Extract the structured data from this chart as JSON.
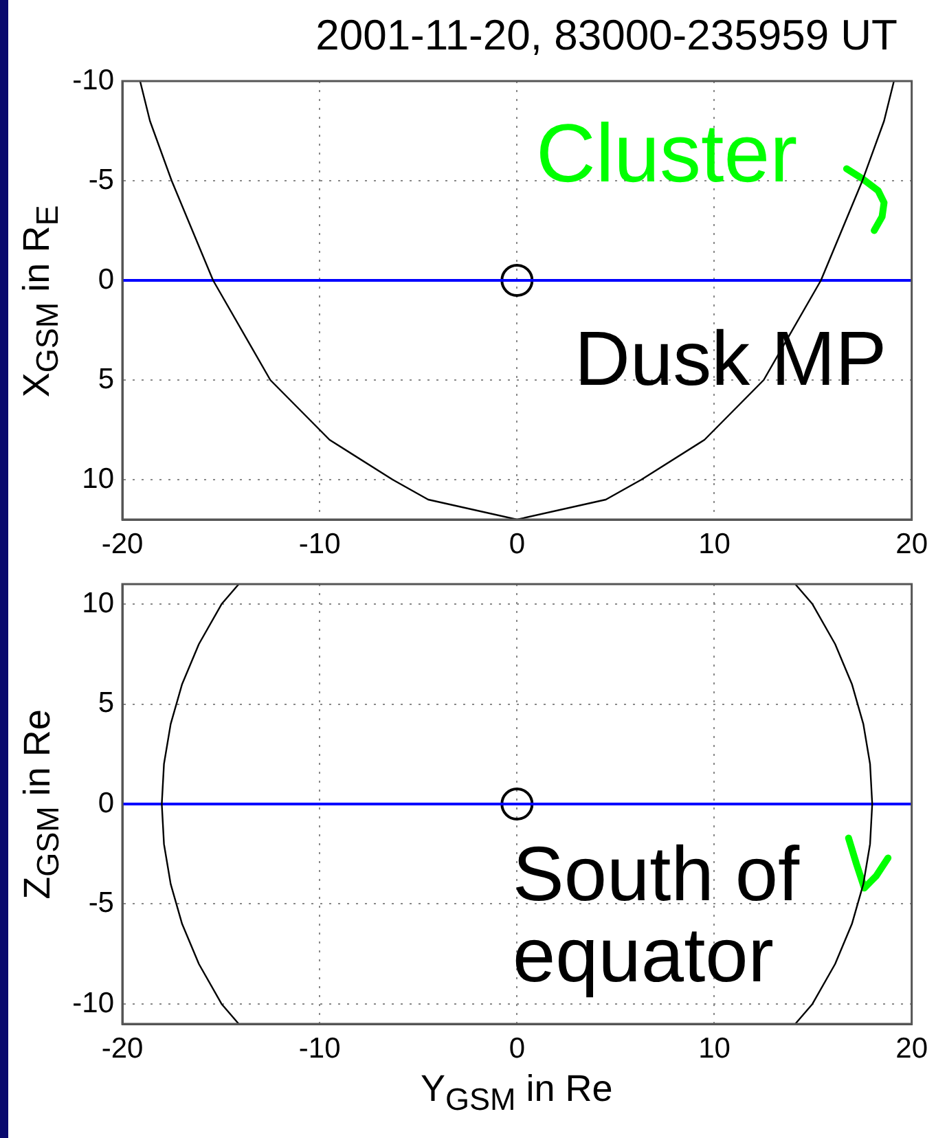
{
  "chart_data": [
    {
      "type": "line",
      "title": "2001-11-20, 83000-235959 UT",
      "ylabel": "X$_{GSM}$ in R$_{E}$",
      "xlim": [
        -20,
        20
      ],
      "xticks": [
        -20,
        -10,
        0,
        10,
        20
      ],
      "ylim": [
        12,
        -10
      ],
      "yticks": [
        -10,
        -5,
        0,
        5,
        10
      ],
      "grid": true,
      "legend": false,
      "line_style": "solid",
      "annotations": [
        "Dusk MP"
      ],
      "series": [
        {
          "type": "line",
          "color": "#000000",
          "marker": "none",
          "x": [
            -19.1,
            -18.6,
            -17.5,
            -15.4,
            -12.5,
            -9.5,
            -6.3,
            -4.5,
            0,
            4.5,
            6.3,
            9.5,
            12.5,
            15.4,
            17.5,
            18.6,
            19.1
          ],
          "values": [
            -10,
            -8,
            -5,
            0,
            5,
            8,
            10,
            11,
            12,
            11,
            10,
            8,
            5,
            0,
            -5,
            -8,
            -10
          ]
        },
        {
          "type": "line",
          "color": "#0000ff",
          "marker": "none",
          "x": [
            -20,
            20
          ],
          "values": [
            0,
            0
          ]
        },
        {
          "type": "scatter",
          "color": "#000000",
          "marker": "circle",
          "x": [
            0
          ],
          "values": [
            0
          ]
        },
        {
          "type": "line",
          "name": "Cluster",
          "color": "#00ff00",
          "marker": "none",
          "x": [
            16.7,
            17.5,
            18.3,
            18.6,
            18.5,
            18.1
          ],
          "values": [
            -5.6,
            -5.1,
            -4.5,
            -3.9,
            -3.2,
            -2.5
          ]
        }
      ]
    },
    {
      "type": "line",
      "xlabel": "Y$_{GSM}$ in Re",
      "ylabel": "Z$_{GSM}$ in Re",
      "xlim": [
        -20,
        20
      ],
      "xticks": [
        -20,
        -10,
        0,
        10,
        20
      ],
      "ylim": [
        -11,
        11
      ],
      "yticks": [
        -10,
        -5,
        0,
        5,
        10
      ],
      "grid": true,
      "legend": false,
      "line_style": "solid",
      "annotations": [
        "South of equator"
      ],
      "series": [
        {
          "type": "line",
          "color": "#000000",
          "marker": "none",
          "x": [
            -14.1,
            -14.97,
            -16.12,
            -16.97,
            -17.55,
            -17.89,
            -18,
            -17.89,
            -17.55,
            -16.97,
            -16.12,
            -14.97,
            -14.1
          ],
          "values": [
            11,
            10,
            8,
            6,
            4,
            2,
            0,
            -2,
            -4,
            -6,
            -8,
            -10,
            -11
          ]
        },
        {
          "type": "line",
          "color": "#000000",
          "marker": "none",
          "x": [
            14.1,
            14.97,
            16.12,
            16.97,
            17.55,
            17.89,
            18,
            17.89,
            17.55,
            16.97,
            16.12,
            14.97,
            14.1
          ],
          "values": [
            11,
            10,
            8,
            6,
            4,
            2,
            0,
            -2,
            -4,
            -6,
            -8,
            -10,
            -11
          ]
        },
        {
          "type": "line",
          "color": "#0000ff",
          "marker": "none",
          "x": [
            -20,
            20
          ],
          "values": [
            0,
            0
          ]
        },
        {
          "type": "scatter",
          "color": "#000000",
          "marker": "circle",
          "x": [
            0
          ],
          "values": [
            0
          ]
        },
        {
          "type": "line",
          "color": "#00ff00",
          "marker": "none",
          "x": [
            16.8,
            17.2,
            17.6,
            18.2,
            18.8
          ],
          "values": [
            -1.7,
            -3,
            -4.2,
            -3.6,
            -2.7
          ]
        }
      ]
    }
  ]
}
